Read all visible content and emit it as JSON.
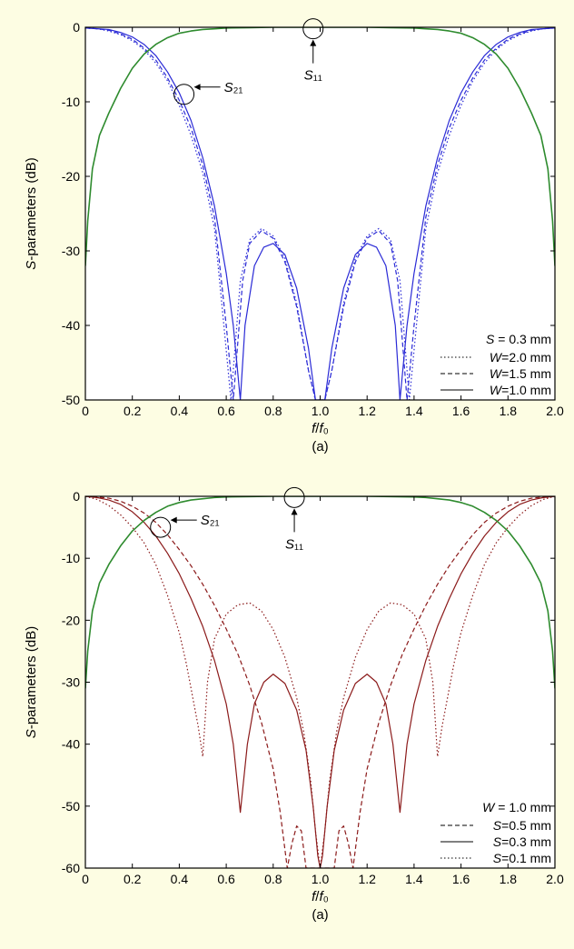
{
  "chart_data": [
    {
      "type": "line",
      "caption": "(a)",
      "xlabel": "f/f0",
      "ylabel": "S-parameters (dB)",
      "xlim": [
        0,
        2.0
      ],
      "ylim": [
        -50,
        0
      ],
      "xticks": [
        "0",
        "0.2",
        "0.4",
        "0.6",
        "0.8",
        "1.0",
        "1.2",
        "1.4",
        "1.6",
        "1.8",
        "2.0"
      ],
      "yticks": [
        "0",
        "-10",
        "-20",
        "-30",
        "-40",
        "-50"
      ],
      "legend_title": "S = 0.3 mm",
      "legend_position": "bottom-right",
      "annotations": [
        "S11",
        "S21"
      ],
      "colors": {
        "s11": "#2e8b2e",
        "s21": "#2a2ad6"
      },
      "series": [
        {
          "name": "W=2.0 mm",
          "style": "dotted",
          "param": "S21",
          "x": [
            0,
            0.05,
            0.1,
            0.15,
            0.2,
            0.25,
            0.3,
            0.35,
            0.4,
            0.45,
            0.5,
            0.55,
            0.59,
            0.62,
            0.66,
            0.7,
            0.75,
            0.8,
            0.85,
            0.9,
            0.95,
            0.98,
            1.0,
            1.02,
            1.05,
            1.1,
            1.15,
            1.2,
            1.25,
            1.3,
            1.34,
            1.38,
            1.41,
            1.45,
            1.5,
            1.55,
            1.6,
            1.65,
            1.7,
            1.75,
            1.8,
            1.85,
            1.9,
            1.95,
            2.0
          ],
          "y": [
            -0.1,
            -0.2,
            -0.5,
            -1,
            -1.8,
            -3,
            -4.8,
            -7.2,
            -10.5,
            -14.5,
            -19.5,
            -27,
            -40,
            -50,
            -34,
            -28.5,
            -27,
            -28,
            -31,
            -37,
            -46,
            -50,
            -50,
            -50,
            -46,
            -37,
            -31,
            -28,
            -27,
            -28.5,
            -34,
            -50,
            -40,
            -27,
            -19.5,
            -14.5,
            -10.5,
            -7.2,
            -4.8,
            -3,
            -1.8,
            -1,
            -0.5,
            -0.2,
            -0.1
          ]
        },
        {
          "name": "W=1.5 mm",
          "style": "dashed",
          "param": "S21",
          "x": [
            0,
            0.05,
            0.1,
            0.15,
            0.2,
            0.25,
            0.3,
            0.35,
            0.4,
            0.45,
            0.5,
            0.55,
            0.6,
            0.63,
            0.67,
            0.7,
            0.75,
            0.8,
            0.85,
            0.9,
            0.95,
            0.98,
            1.0,
            1.02,
            1.05,
            1.1,
            1.15,
            1.2,
            1.25,
            1.3,
            1.33,
            1.37,
            1.4,
            1.45,
            1.5,
            1.55,
            1.6,
            1.65,
            1.7,
            1.75,
            1.8,
            1.85,
            1.9,
            1.95,
            2.0
          ],
          "y": [
            -0.1,
            -0.2,
            -0.4,
            -0.9,
            -1.6,
            -2.8,
            -4.4,
            -6.8,
            -9.8,
            -13.5,
            -18.5,
            -25.5,
            -40,
            -50,
            -34,
            -29,
            -27.3,
            -28.3,
            -31.5,
            -37.5,
            -46,
            -50,
            -50,
            -50,
            -46,
            -37.5,
            -31.5,
            -28.3,
            -27.3,
            -29,
            -34,
            -50,
            -40,
            -25.5,
            -18.5,
            -13.5,
            -9.8,
            -6.8,
            -4.4,
            -2.8,
            -1.6,
            -0.9,
            -0.4,
            -0.2,
            -0.1
          ]
        },
        {
          "name": "W=1.0 mm",
          "style": "solid",
          "param": "S21",
          "x": [
            0,
            0.05,
            0.1,
            0.15,
            0.2,
            0.25,
            0.3,
            0.35,
            0.4,
            0.45,
            0.5,
            0.55,
            0.6,
            0.63,
            0.66,
            0.68,
            0.72,
            0.76,
            0.8,
            0.85,
            0.9,
            0.95,
            0.98,
            1.0,
            1.02,
            1.05,
            1.1,
            1.15,
            1.2,
            1.24,
            1.28,
            1.32,
            1.34,
            1.37,
            1.4,
            1.45,
            1.5,
            1.55,
            1.6,
            1.65,
            1.7,
            1.75,
            1.8,
            1.85,
            1.9,
            1.95,
            2.0
          ],
          "y": [
            -0.1,
            -0.2,
            -0.3,
            -0.7,
            -1.3,
            -2.3,
            -3.8,
            -6,
            -8.8,
            -12.5,
            -17.5,
            -24,
            -33,
            -40,
            -50,
            -40,
            -32,
            -29.5,
            -29,
            -30.5,
            -35,
            -43,
            -50,
            -50,
            -50,
            -43,
            -35,
            -30.5,
            -29,
            -29.5,
            -32,
            -40,
            -50,
            -40,
            -33,
            -24,
            -17.5,
            -12.5,
            -8.8,
            -6,
            -3.8,
            -2.3,
            -1.3,
            -0.7,
            -0.3,
            -0.2,
            -0.1
          ]
        },
        {
          "name": "",
          "style": "solid",
          "param": "S11",
          "x": [
            0,
            0.01,
            0.03,
            0.06,
            0.1,
            0.15,
            0.2,
            0.25,
            0.3,
            0.35,
            0.4,
            0.45,
            0.5,
            0.55,
            0.6,
            0.7,
            0.8,
            1.0,
            1.2,
            1.3,
            1.4,
            1.45,
            1.5,
            1.55,
            1.6,
            1.65,
            1.7,
            1.75,
            1.8,
            1.85,
            1.9,
            1.94,
            1.97,
            1.99,
            2.0
          ],
          "y": [
            -32,
            -26,
            -19,
            -14.5,
            -11.5,
            -8.2,
            -5.5,
            -3.6,
            -2.3,
            -1.4,
            -0.8,
            -0.5,
            -0.3,
            -0.2,
            -0.1,
            -0.05,
            0,
            0,
            0,
            -0.05,
            -0.1,
            -0.2,
            -0.3,
            -0.5,
            -0.8,
            -1.4,
            -2.3,
            -3.6,
            -5.5,
            -8.2,
            -11.5,
            -14.5,
            -19,
            -26,
            -32
          ]
        }
      ]
    },
    {
      "type": "line",
      "caption": "(a)",
      "xlabel": "f/f0",
      "ylabel": "S-parameters (dB)",
      "xlim": [
        0,
        2.0
      ],
      "ylim": [
        -60,
        0
      ],
      "xticks": [
        "0",
        "0.2",
        "0.4",
        "0.6",
        "0.8",
        "1.0",
        "1.2",
        "1.4",
        "1.6",
        "1.8",
        "2.0"
      ],
      "yticks": [
        "0",
        "-10",
        "-20",
        "-30",
        "-40",
        "-50",
        "-60"
      ],
      "legend_title": "W = 1.0 mm",
      "legend_position": "bottom-right",
      "annotations": [
        "S11",
        "S21"
      ],
      "colors": {
        "s11": "#2e8b2e",
        "s21": "#8b1a1a"
      },
      "series": [
        {
          "name": "S=0.5 mm",
          "style": "dashed",
          "param": "S21",
          "x": [
            0,
            0.05,
            0.1,
            0.15,
            0.2,
            0.25,
            0.3,
            0.35,
            0.4,
            0.45,
            0.5,
            0.55,
            0.6,
            0.65,
            0.7,
            0.75,
            0.8,
            0.83,
            0.86,
            0.88,
            0.9,
            0.92,
            0.94,
            0.96,
            0.98,
            1.0,
            1.02,
            1.04,
            1.06,
            1.08,
            1.1,
            1.12,
            1.14,
            1.17,
            1.2,
            1.25,
            1.3,
            1.35,
            1.4,
            1.45,
            1.5,
            1.55,
            1.6,
            1.65,
            1.7,
            1.75,
            1.8,
            1.85,
            1.9,
            1.95,
            2.0
          ],
          "y": [
            0,
            -0.1,
            -0.3,
            -0.8,
            -1.6,
            -2.7,
            -4.2,
            -6.2,
            -8.6,
            -11.2,
            -14.2,
            -17.6,
            -21.4,
            -25.5,
            -30.5,
            -36.5,
            -44,
            -51,
            -60,
            -56,
            -53.2,
            -54,
            -60,
            -60,
            -60,
            -60,
            -60,
            -60,
            -60,
            -54,
            -53.2,
            -56,
            -60,
            -51,
            -44,
            -36.5,
            -30.5,
            -25.5,
            -21.4,
            -17.6,
            -14.2,
            -11.2,
            -8.6,
            -6.2,
            -4.2,
            -2.7,
            -1.6,
            -0.8,
            -0.3,
            -0.1,
            0
          ]
        },
        {
          "name": "S=0.3 mm",
          "style": "solid",
          "param": "S21",
          "x": [
            0,
            0.05,
            0.1,
            0.15,
            0.2,
            0.25,
            0.3,
            0.35,
            0.4,
            0.45,
            0.5,
            0.55,
            0.6,
            0.63,
            0.66,
            0.69,
            0.72,
            0.76,
            0.8,
            0.85,
            0.9,
            0.94,
            0.97,
            0.99,
            1.0,
            1.01,
            1.03,
            1.06,
            1.1,
            1.15,
            1.2,
            1.24,
            1.28,
            1.31,
            1.34,
            1.37,
            1.4,
            1.45,
            1.5,
            1.55,
            1.6,
            1.65,
            1.7,
            1.75,
            1.8,
            1.85,
            1.9,
            1.95,
            2.0
          ],
          "y": [
            0,
            -0.2,
            -0.6,
            -1.3,
            -2.5,
            -4.2,
            -6.4,
            -9.2,
            -12.5,
            -16.5,
            -21,
            -26.5,
            -33.5,
            -40,
            -51,
            -40,
            -33.5,
            -30,
            -28.7,
            -30.2,
            -34.5,
            -41,
            -50,
            -58,
            -60,
            -58,
            -50,
            -41,
            -34.5,
            -30.2,
            -28.7,
            -30,
            -33.5,
            -40,
            -51,
            -40,
            -33.5,
            -26.5,
            -21,
            -16.5,
            -12.5,
            -9.2,
            -6.4,
            -4.2,
            -2.5,
            -1.3,
            -0.6,
            -0.2,
            0
          ]
        },
        {
          "name": "S=0.1 mm",
          "style": "dotted",
          "param": "S21",
          "x": [
            0,
            0.05,
            0.1,
            0.15,
            0.2,
            0.25,
            0.3,
            0.35,
            0.4,
            0.43,
            0.46,
            0.48,
            0.5,
            0.52,
            0.55,
            0.6,
            0.65,
            0.7,
            0.75,
            0.8,
            0.85,
            0.9,
            0.93,
            0.96,
            0.98,
            1.0,
            1.02,
            1.04,
            1.07,
            1.1,
            1.15,
            1.2,
            1.25,
            1.3,
            1.35,
            1.4,
            1.45,
            1.48,
            1.5,
            1.52,
            1.54,
            1.57,
            1.6,
            1.65,
            1.7,
            1.75,
            1.8,
            1.85,
            1.9,
            1.95,
            2.0
          ],
          "y": [
            0,
            -0.5,
            -1.5,
            -3,
            -5,
            -7.5,
            -11,
            -16,
            -22,
            -27,
            -33,
            -37,
            -42,
            -30,
            -23,
            -19,
            -17.5,
            -17.2,
            -18.5,
            -21.5,
            -26,
            -32.5,
            -38,
            -46,
            -54,
            -60,
            -54,
            -46,
            -38,
            -32.5,
            -26,
            -21.5,
            -18.5,
            -17.2,
            -17.5,
            -19,
            -23,
            -30,
            -42,
            -37,
            -33,
            -27,
            -22,
            -16,
            -11,
            -7.5,
            -5,
            -3,
            -1.5,
            -0.5,
            0
          ]
        },
        {
          "name": "",
          "style": "solid",
          "param": "S11",
          "x": [
            0,
            0.01,
            0.03,
            0.06,
            0.1,
            0.15,
            0.2,
            0.25,
            0.3,
            0.35,
            0.4,
            0.45,
            0.5,
            0.55,
            0.6,
            0.7,
            0.8,
            1.0,
            1.2,
            1.3,
            1.4,
            1.45,
            1.5,
            1.55,
            1.6,
            1.65,
            1.7,
            1.75,
            1.8,
            1.85,
            1.9,
            1.94,
            1.97,
            1.99,
            2.0
          ],
          "y": [
            -31,
            -25,
            -18.5,
            -14,
            -11,
            -8,
            -5.6,
            -3.9,
            -2.6,
            -1.6,
            -1,
            -0.6,
            -0.4,
            -0.2,
            -0.1,
            -0.05,
            0,
            0,
            0,
            -0.05,
            -0.1,
            -0.2,
            -0.4,
            -0.6,
            -1,
            -1.6,
            -2.6,
            -3.9,
            -5.6,
            -8,
            -11,
            -14,
            -18.5,
            -25,
            -31
          ]
        }
      ]
    }
  ]
}
